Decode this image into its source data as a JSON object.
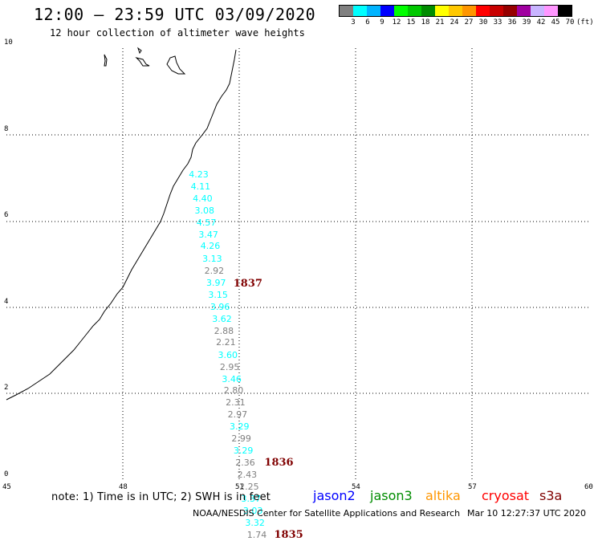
{
  "header": {
    "title": "12:00 – 23:59 UTC 03/09/2020",
    "subtitle": "12 hour collection of altimeter wave heights"
  },
  "legend": {
    "colors": [
      "#808080",
      "#00ffff",
      "#00b4ff",
      "#0000ff",
      "#00ff00",
      "#00c800",
      "#008c00",
      "#ffff00",
      "#ffc800",
      "#ff9600",
      "#ff0000",
      "#c80000",
      "#960000",
      "#a000a0",
      "#c8b4ff",
      "#ff96ff",
      "#000000"
    ],
    "labels": [
      "3",
      "6",
      "9",
      "12",
      "15",
      "18",
      "21",
      "24",
      "27",
      "30",
      "33",
      "36",
      "39",
      "42",
      "45",
      "70"
    ],
    "unit": "(ft)"
  },
  "axes": {
    "x_ticks": [
      "45",
      "48",
      "51",
      "54",
      "57",
      "60"
    ],
    "y_ticks": [
      "0",
      "2",
      "4",
      "6",
      "8",
      "10"
    ],
    "lon_range": [
      45,
      60
    ],
    "lat_range": [
      0,
      10
    ]
  },
  "swh_values": [
    {
      "text": "4.23",
      "color": "#00ffff",
      "lon": 49.95,
      "lat": 7.07
    },
    {
      "text": "4.11",
      "color": "#00ffff",
      "lon": 50.0,
      "lat": 6.78
    },
    {
      "text": "4.40",
      "color": "#00ffff",
      "lon": 50.05,
      "lat": 6.5
    },
    {
      "text": "3.08",
      "color": "#00ffff",
      "lon": 50.1,
      "lat": 6.22
    },
    {
      "text": "4.57",
      "color": "#00ffff",
      "lon": 50.15,
      "lat": 5.94
    },
    {
      "text": "3.47",
      "color": "#00ffff",
      "lon": 50.2,
      "lat": 5.66
    },
    {
      "text": "4.26",
      "color": "#00ffff",
      "lon": 50.25,
      "lat": 5.4
    },
    {
      "text": "3.13",
      "color": "#00ffff",
      "lon": 50.3,
      "lat": 5.12
    },
    {
      "text": "2.92",
      "color": "#808080",
      "lon": 50.35,
      "lat": 4.84
    },
    {
      "text": "3.97",
      "color": "#00ffff",
      "lon": 50.4,
      "lat": 4.56
    },
    {
      "text": "3.15",
      "color": "#00ffff",
      "lon": 50.45,
      "lat": 4.28
    },
    {
      "text": "3.96",
      "color": "#00ffff",
      "lon": 50.5,
      "lat": 4.0
    },
    {
      "text": "3.62",
      "color": "#00ffff",
      "lon": 50.55,
      "lat": 3.72
    },
    {
      "text": "2.88",
      "color": "#808080",
      "lon": 50.6,
      "lat": 3.44
    },
    {
      "text": "2.21",
      "color": "#808080",
      "lon": 50.65,
      "lat": 3.17
    },
    {
      "text": "3.60",
      "color": "#00ffff",
      "lon": 50.7,
      "lat": 2.89
    },
    {
      "text": "2.95",
      "color": "#808080",
      "lon": 50.75,
      "lat": 2.61
    },
    {
      "text": "3.46",
      "color": "#00ffff",
      "lon": 50.8,
      "lat": 2.33
    },
    {
      "text": "2.80",
      "color": "#808080",
      "lon": 50.85,
      "lat": 2.06
    },
    {
      "text": "2.31",
      "color": "#808080",
      "lon": 50.9,
      "lat": 1.78
    },
    {
      "text": "2.97",
      "color": "#808080",
      "lon": 50.95,
      "lat": 1.5
    },
    {
      "text": "3.29",
      "color": "#00ffff",
      "lon": 51.0,
      "lat": 1.22
    },
    {
      "text": "2.99",
      "color": "#808080",
      "lon": 51.05,
      "lat": 0.94
    },
    {
      "text": "3.29",
      "color": "#00ffff",
      "lon": 51.1,
      "lat": 0.67
    },
    {
      "text": "2.36",
      "color": "#808080",
      "lon": 51.15,
      "lat": 0.39
    },
    {
      "text": "2.43",
      "color": "#808080",
      "lon": 51.2,
      "lat": 0.11
    },
    {
      "text": "2.25",
      "color": "#808080",
      "lon": 51.25,
      "lat": -0.17
    },
    {
      "text": "3.37",
      "color": "#00ffff",
      "lon": 51.3,
      "lat": -0.45
    },
    {
      "text": "3.03",
      "color": "#00ffff",
      "lon": 51.35,
      "lat": -0.72
    },
    {
      "text": "3.32",
      "color": "#00ffff",
      "lon": 51.4,
      "lat": -1.0
    },
    {
      "text": "1.74",
      "color": "#808080",
      "lon": 51.45,
      "lat": -1.28
    }
  ],
  "pass_labels": [
    {
      "text": "1837",
      "color": "#800000",
      "lon": 50.85,
      "lat": 4.53
    },
    {
      "text": "1836",
      "color": "#800000",
      "lon": 51.65,
      "lat": 0.39
    },
    {
      "text": "1835",
      "color": "#800000",
      "lon": 51.9,
      "lat": -1.28
    }
  ],
  "footer": {
    "note": "note:  1) Time is in UTC;  2) SWH is in feet",
    "satellites": [
      {
        "name": "jason2",
        "color": "#0000ff"
      },
      {
        "name": "jason3",
        "color": "#008c00"
      },
      {
        "name": "altika",
        "color": "#ff9600"
      },
      {
        "name": "cryosat",
        "color": "#ff0000"
      },
      {
        "name": "s3a",
        "color": "#800000"
      }
    ],
    "credit": "NOAA/NESDIS Center for Satellite Applications and Research",
    "timestamp": "Mar 10 12:27:37 UTC 2020"
  }
}
